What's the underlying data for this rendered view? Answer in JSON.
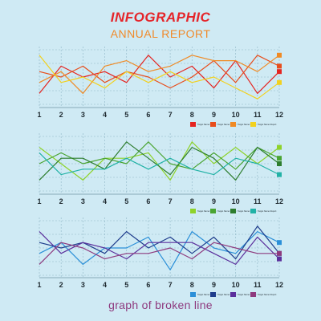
{
  "header": {
    "title": "INFOGRAPHIC",
    "subtitle": "ANNUAL REPORT"
  },
  "caption": "graph of broken line",
  "legend_item_text": "Target Name Report",
  "chart_data": [
    {
      "type": "line",
      "x": [
        1,
        2,
        3,
        4,
        5,
        6,
        7,
        8,
        9,
        10,
        11,
        12
      ],
      "xlim": [
        1,
        12
      ],
      "ylim": [
        0,
        10
      ],
      "grid": true,
      "legend": "bottom-right",
      "series": [
        {
          "color": "#e52420",
          "values": [
            2,
            7,
            5,
            6,
            4,
            9,
            5,
            7,
            3,
            8,
            2,
            6
          ]
        },
        {
          "color": "#e84d1b",
          "values": [
            6,
            5,
            7,
            4,
            6,
            5,
            3,
            5,
            8,
            4,
            9,
            7
          ]
        },
        {
          "color": "#f08a24",
          "values": [
            4,
            6,
            2,
            7,
            8,
            6,
            7,
            9,
            8,
            8,
            6,
            9
          ]
        },
        {
          "color": "#f2d11e",
          "values": [
            9,
            4,
            5,
            3,
            6,
            4,
            6,
            4,
            5,
            3,
            1,
            4
          ]
        }
      ]
    },
    {
      "type": "line",
      "x": [
        1,
        2,
        3,
        4,
        5,
        6,
        7,
        8,
        9,
        10,
        11,
        12
      ],
      "xlim": [
        1,
        12
      ],
      "ylim": [
        0,
        10
      ],
      "grid": true,
      "legend": "bottom-right",
      "series": [
        {
          "color": "#8ed32a",
          "values": [
            8,
            5,
            2,
            6,
            6,
            7,
            2,
            9,
            5,
            8,
            5,
            8
          ]
        },
        {
          "color": "#4aa532",
          "values": [
            5,
            7,
            5,
            6,
            5,
            9,
            5,
            4,
            7,
            4,
            8,
            6
          ]
        },
        {
          "color": "#2d7d2e",
          "values": [
            2,
            6,
            6,
            4,
            9,
            6,
            3,
            8,
            6,
            2,
            8,
            5
          ]
        },
        {
          "color": "#22b2a6",
          "values": [
            7,
            3,
            4,
            4,
            6,
            4,
            6,
            4,
            3,
            6,
            5,
            3
          ]
        }
      ]
    },
    {
      "type": "line",
      "x": [
        1,
        2,
        3,
        4,
        5,
        6,
        7,
        8,
        9,
        10,
        11,
        12
      ],
      "xlim": [
        1,
        12
      ],
      "ylim": [
        0,
        10
      ],
      "grid": true,
      "legend": "bottom-right",
      "series": [
        {
          "color": "#2a8fd8",
          "values": [
            4,
            6,
            2,
            5,
            5,
            7,
            1,
            8,
            5,
            4,
            8,
            6
          ]
        },
        {
          "color": "#1f3d8c",
          "values": [
            6,
            5,
            6,
            4,
            8,
            5,
            7,
            4,
            7,
            3,
            9,
            4
          ]
        },
        {
          "color": "#5b2f9c",
          "values": [
            8,
            4,
            6,
            5,
            3,
            6,
            6,
            6,
            4,
            2,
            7,
            3
          ]
        },
        {
          "color": "#8e3a7e",
          "values": [
            2,
            6,
            5,
            3,
            4,
            4,
            5,
            3,
            6,
            5,
            4,
            4
          ]
        }
      ]
    }
  ]
}
